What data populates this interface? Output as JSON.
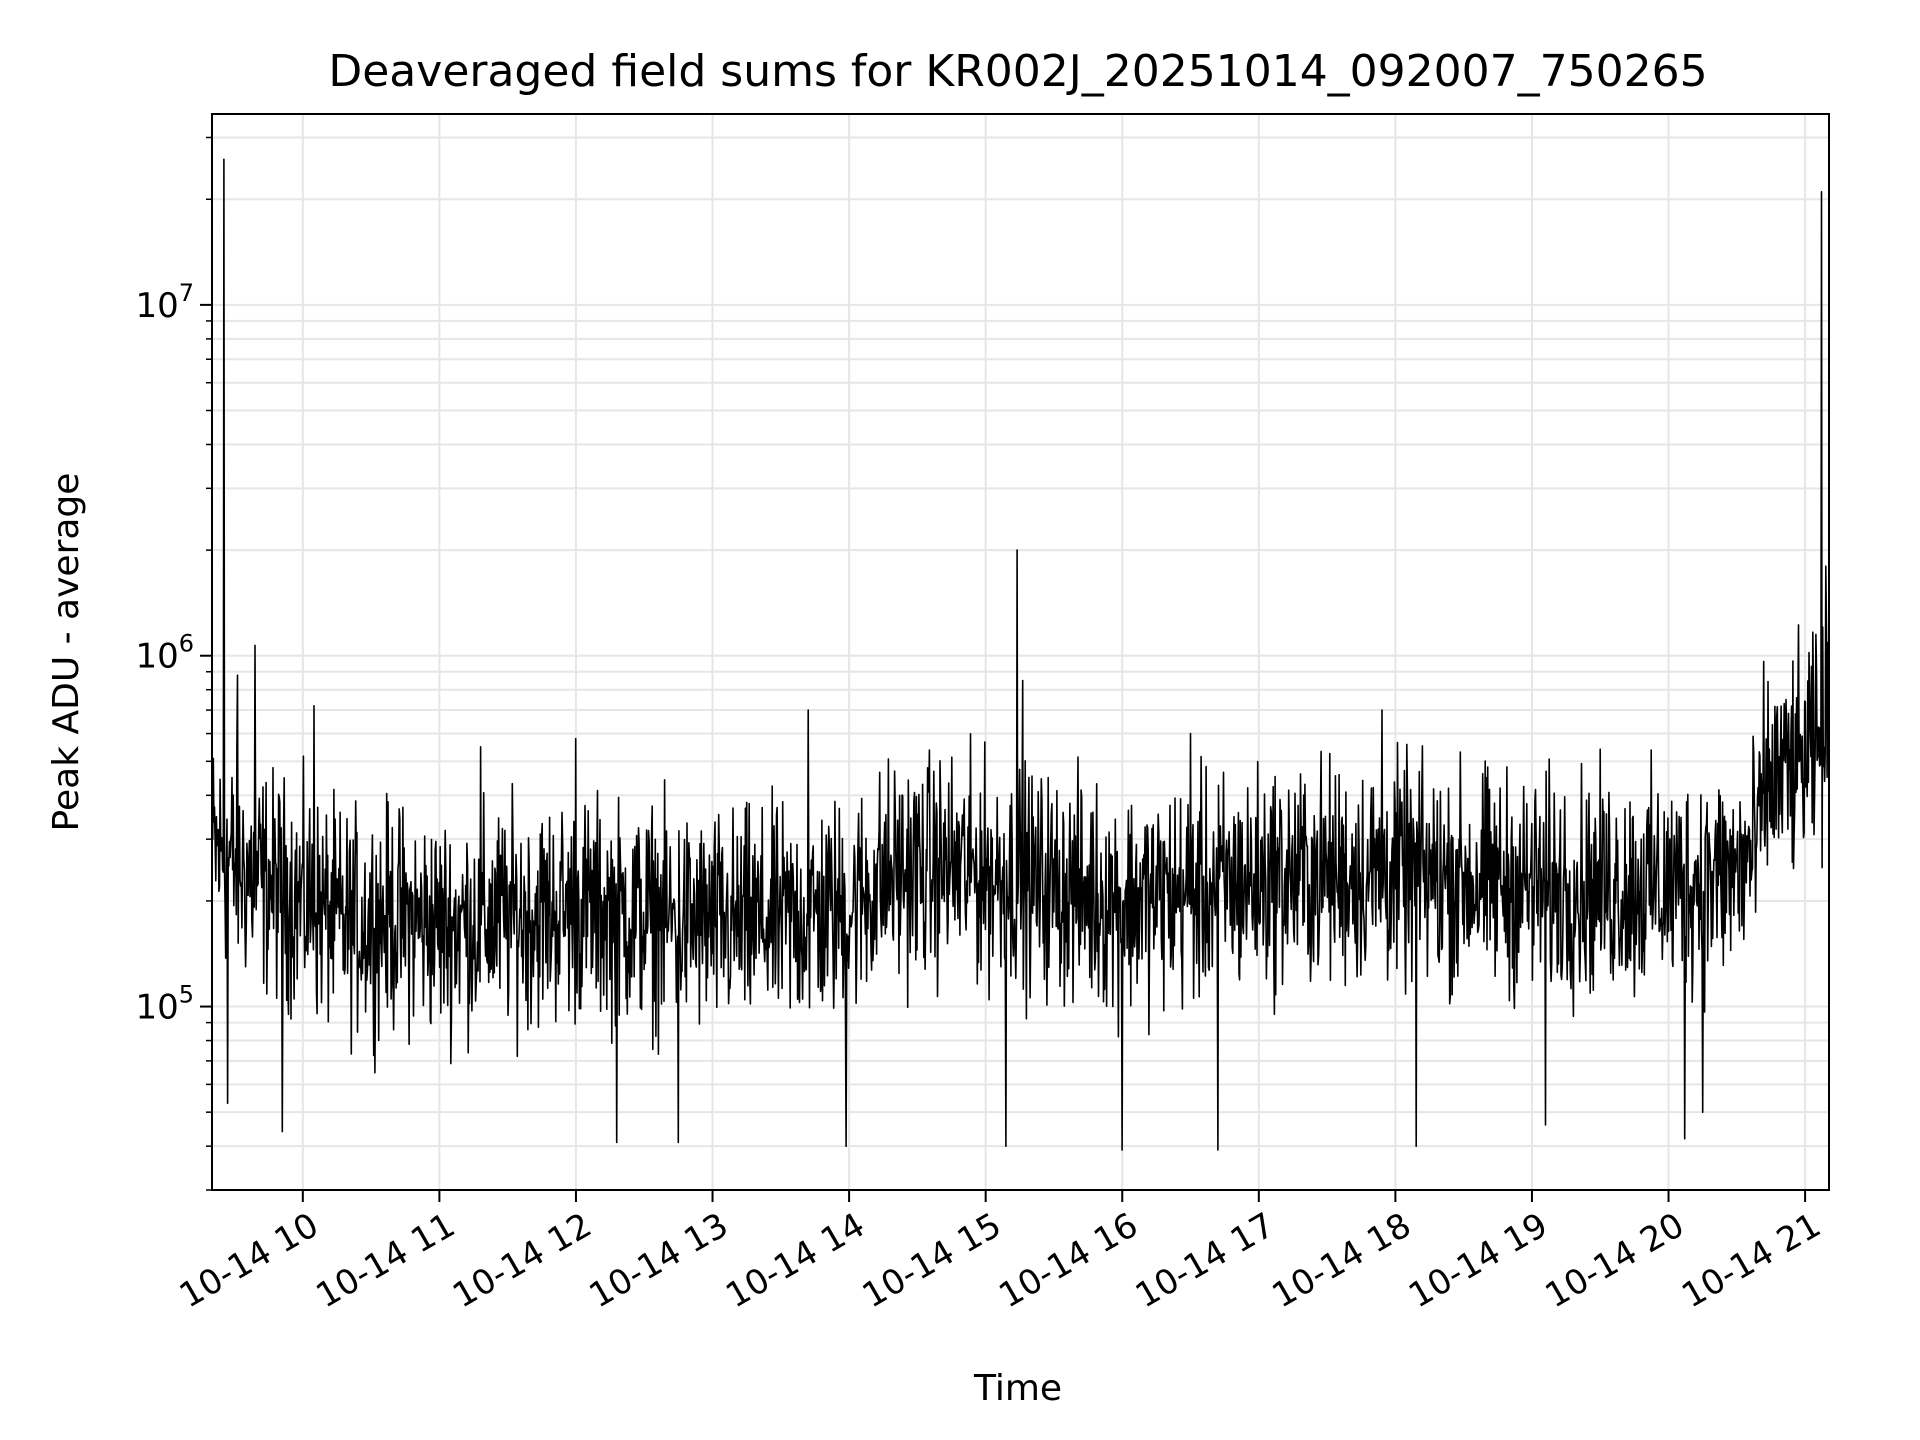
{
  "chart_data": {
    "type": "line",
    "title": "Deaveraged field sums for KR002J_20251014_092007_750265",
    "xlabel": "Time",
    "ylabel": "Peak ADU - average",
    "yscale": "log",
    "ylim": [
      30000,
      35000000
    ],
    "xlim_hours": [
      9.335,
      21.175
    ],
    "grid": true,
    "line_color": "#000000",
    "grid_color": "#e6e6e6",
    "x_ticks": [
      {
        "hour": 10,
        "label": "10-14 10"
      },
      {
        "hour": 11,
        "label": "10-14 11"
      },
      {
        "hour": 12,
        "label": "10-14 12"
      },
      {
        "hour": 13,
        "label": "10-14 13"
      },
      {
        "hour": 14,
        "label": "10-14 14"
      },
      {
        "hour": 15,
        "label": "10-14 15"
      },
      {
        "hour": 16,
        "label": "10-14 16"
      },
      {
        "hour": 17,
        "label": "10-14 17"
      },
      {
        "hour": 18,
        "label": "10-14 18"
      },
      {
        "hour": 19,
        "label": "10-14 19"
      },
      {
        "hour": 20,
        "label": "10-14 20"
      },
      {
        "hour": 21,
        "label": "10-14 21"
      }
    ],
    "y_ticks": [
      {
        "value": 100000,
        "base": "10",
        "exp": "5"
      },
      {
        "value": 1000000,
        "base": "10",
        "exp": "6"
      },
      {
        "value": 10000000,
        "base": "10",
        "exp": "7"
      }
    ],
    "series": [
      {
        "name": "deaveraged field sum",
        "baseline": [
          [
            9.34,
            280000
          ],
          [
            9.6,
            240000
          ],
          [
            10.0,
            200000
          ],
          [
            10.3,
            170000
          ],
          [
            10.6,
            180000
          ],
          [
            11.0,
            170000
          ],
          [
            11.5,
            180000
          ],
          [
            12.0,
            190000
          ],
          [
            12.5,
            180000
          ],
          [
            13.0,
            170000
          ],
          [
            13.5,
            175000
          ],
          [
            14.0,
            190000
          ],
          [
            14.3,
            240000
          ],
          [
            14.7,
            250000
          ],
          [
            15.0,
            240000
          ],
          [
            15.5,
            220000
          ],
          [
            16.0,
            200000
          ],
          [
            16.5,
            210000
          ],
          [
            17.0,
            230000
          ],
          [
            17.5,
            240000
          ],
          [
            18.0,
            240000
          ],
          [
            18.5,
            230000
          ],
          [
            19.0,
            220000
          ],
          [
            19.5,
            220000
          ],
          [
            20.0,
            220000
          ],
          [
            20.5,
            240000
          ],
          [
            20.65,
            280000
          ],
          [
            20.7,
            420000
          ],
          [
            21.0,
            500000
          ],
          [
            21.17,
            560000
          ]
        ],
        "spikes": [
          [
            9.42,
            26000000
          ],
          [
            9.65,
            1070000
          ],
          [
            9.52,
            880000
          ],
          [
            10.08,
            720000
          ],
          [
            11.3,
            550000
          ],
          [
            12.0,
            580000
          ],
          [
            13.7,
            700000
          ],
          [
            15.23,
            2000000
          ],
          [
            15.27,
            850000
          ],
          [
            16.5,
            600000
          ],
          [
            17.9,
            700000
          ],
          [
            21.12,
            21000000
          ],
          [
            21.15,
            1800000
          ],
          [
            21.08,
            1150000
          ],
          [
            21.17,
            1000000
          ]
        ],
        "dips": [
          [
            9.45,
            53000
          ],
          [
            9.85,
            44000
          ],
          [
            12.3,
            41000
          ],
          [
            12.75,
            41000
          ],
          [
            13.98,
            40000
          ],
          [
            15.15,
            40000
          ],
          [
            16.0,
            39000
          ],
          [
            16.7,
            39000
          ],
          [
            18.15,
            40000
          ],
          [
            19.1,
            46000
          ],
          [
            20.12,
            42000
          ],
          [
            20.25,
            50000
          ]
        ]
      }
    ]
  }
}
